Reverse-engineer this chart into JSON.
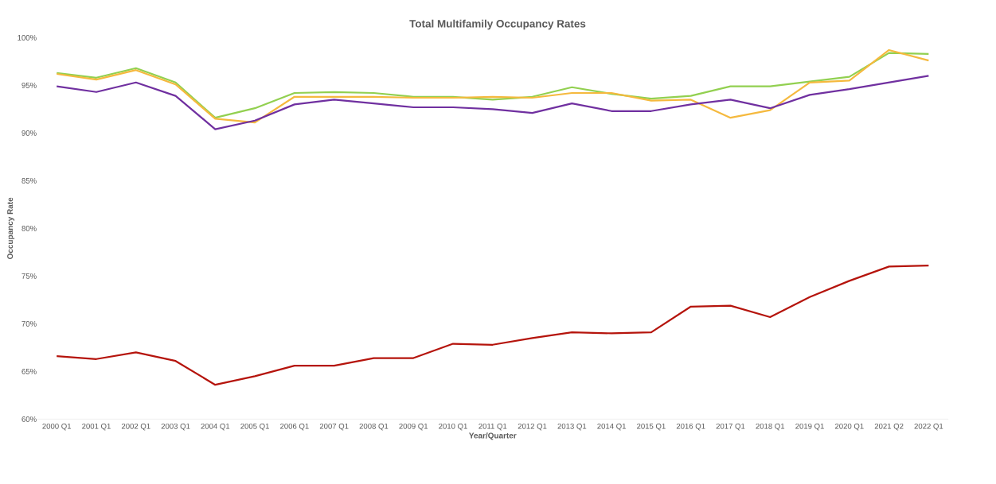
{
  "chart_data": {
    "type": "line",
    "title": "Total Multifamily Occupancy Rates",
    "xlabel": "Year/Quarter",
    "ylabel": "Occupancy Rate",
    "categories": [
      "2000 Q1",
      "2001 Q1",
      "2002 Q1",
      "2003 Q1",
      "2004 Q1",
      "2005 Q1",
      "2006 Q1",
      "2007 Q1",
      "2008 Q1",
      "2009 Q1",
      "2010 Q1",
      "2011 Q1",
      "2012 Q1",
      "2013 Q1",
      "2014 Q1",
      "2015 Q1",
      "2016 Q1",
      "2017 Q1",
      "2018 Q1",
      "2019 Q1",
      "2020 Q1",
      "2021 Q2",
      "2022 Q1"
    ],
    "series": [
      {
        "color": "#92d050",
        "values": [
          96.3,
          95.8,
          96.8,
          95.3,
          91.6,
          92.6,
          94.2,
          94.3,
          94.2,
          93.8,
          93.8,
          93.5,
          93.8,
          94.8,
          94.1,
          93.6,
          93.9,
          94.9,
          94.9,
          95.4,
          95.9,
          98.4,
          98.3
        ]
      },
      {
        "color": "#f5b93e",
        "values": [
          96.2,
          95.6,
          96.6,
          95.1,
          91.5,
          91.1,
          93.8,
          93.8,
          93.8,
          93.7,
          93.7,
          93.8,
          93.7,
          94.2,
          94.2,
          93.4,
          93.5,
          91.6,
          92.4,
          95.3,
          95.5,
          98.7,
          97.6
        ]
      },
      {
        "color": "#7030a0",
        "values": [
          94.9,
          94.3,
          95.3,
          93.9,
          90.4,
          91.3,
          93.0,
          93.5,
          93.1,
          92.7,
          92.7,
          92.5,
          92.1,
          93.1,
          92.3,
          92.3,
          93.0,
          93.5,
          92.6,
          94.0,
          94.6,
          95.3,
          96.0
        ]
      },
      {
        "color": "#b5140c",
        "values": [
          66.6,
          66.3,
          67.0,
          66.1,
          63.6,
          64.5,
          65.6,
          65.6,
          66.4,
          66.4,
          67.9,
          67.8,
          68.5,
          69.1,
          69.0,
          69.1,
          71.8,
          71.9,
          70.7,
          72.8,
          74.5,
          76.0,
          76.1
        ]
      }
    ],
    "ylim": [
      60,
      100
    ],
    "yticks": [
      {
        "value": 60,
        "label": "60%"
      },
      {
        "value": 65,
        "label": "65%"
      },
      {
        "value": 70,
        "label": "70%"
      },
      {
        "value": 75,
        "label": "75%"
      },
      {
        "value": 80,
        "label": "80%"
      },
      {
        "value": 85,
        "label": "85%"
      },
      {
        "value": 90,
        "label": "90%"
      },
      {
        "value": 95,
        "label": "95%"
      },
      {
        "value": 100,
        "label": "100%"
      }
    ]
  }
}
